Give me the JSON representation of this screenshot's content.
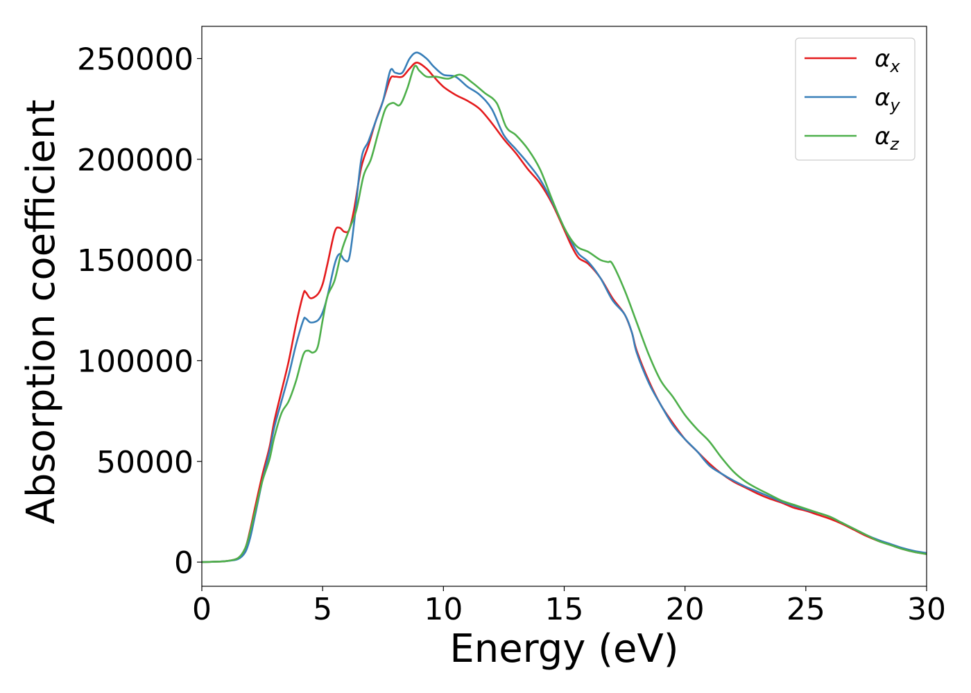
{
  "chart_data": {
    "type": "line",
    "title": "",
    "xlabel": "Energy (eV)",
    "ylabel": "Absorption coefficient",
    "xlim": [
      0,
      30
    ],
    "ylim": [
      -12000,
      266000
    ],
    "xticks": [
      0,
      5,
      10,
      15,
      20,
      25,
      30
    ],
    "yticks": [
      0,
      50000,
      100000,
      150000,
      200000,
      250000
    ],
    "grid": false,
    "legend_position": "top-right",
    "series": [
      {
        "name": "α_x",
        "label_base": "α",
        "label_sub": "x",
        "color": "#e41a1c",
        "x": [
          0,
          0.5,
          1.0,
          1.5,
          1.8,
          2.0,
          2.2,
          2.5,
          2.8,
          3.0,
          3.3,
          3.6,
          3.9,
          4.2,
          4.3,
          4.5,
          4.8,
          5.0,
          5.2,
          5.5,
          5.7,
          5.9,
          6.1,
          6.3,
          6.6,
          6.9,
          7.2,
          7.5,
          7.8,
          8.0,
          8.3,
          8.6,
          8.9,
          9.3,
          9.6,
          10.0,
          10.5,
          11.0,
          11.5,
          12.0,
          12.5,
          13.0,
          13.5,
          14.0,
          14.5,
          15.0,
          15.3,
          15.6,
          16.0,
          16.5,
          17.0,
          17.5,
          17.8,
          18.0,
          18.5,
          19.0,
          19.5,
          20.0,
          20.5,
          21.0,
          21.5,
          22.0,
          22.5,
          23.0,
          23.5,
          24.0,
          24.5,
          25.0,
          25.5,
          26.0,
          26.5,
          27.0,
          27.5,
          28.0,
          28.5,
          29.0,
          29.5,
          30.0
        ],
        "values": [
          0,
          200,
          500,
          2000,
          7000,
          16000,
          27000,
          43000,
          57000,
          70000,
          85000,
          100000,
          118000,
          133000,
          134000,
          131000,
          133000,
          138000,
          148000,
          164000,
          166000,
          164000,
          165000,
          175000,
          196000,
          207000,
          219000,
          229000,
          240000,
          241000,
          241000,
          245000,
          248000,
          245000,
          241000,
          236000,
          232000,
          229000,
          225000,
          218000,
          210000,
          203000,
          195000,
          188000,
          178000,
          165000,
          157000,
          151000,
          148000,
          141000,
          131000,
          123000,
          114000,
          105000,
          90000,
          78000,
          69000,
          61000,
          55000,
          49000,
          44000,
          40000,
          37000,
          34000,
          31500,
          29500,
          27000,
          25500,
          23500,
          21500,
          19000,
          16000,
          13000,
          10500,
          8500,
          6500,
          5000,
          4000
        ]
      },
      {
        "name": "α_y",
        "label_base": "α",
        "label_sub": "y",
        "color": "#377eb8",
        "x": [
          0,
          0.5,
          1.0,
          1.5,
          1.8,
          2.0,
          2.2,
          2.5,
          2.8,
          3.0,
          3.3,
          3.6,
          3.9,
          4.2,
          4.3,
          4.5,
          4.8,
          5.0,
          5.2,
          5.5,
          5.7,
          5.9,
          6.1,
          6.3,
          6.6,
          6.9,
          7.2,
          7.5,
          7.8,
          8.0,
          8.3,
          8.6,
          8.9,
          9.3,
          9.6,
          10.0,
          10.5,
          11.0,
          11.5,
          12.0,
          12.5,
          13.0,
          13.5,
          14.0,
          14.5,
          15.0,
          15.3,
          15.6,
          16.0,
          16.5,
          17.0,
          17.5,
          17.8,
          18.0,
          18.5,
          19.0,
          19.5,
          20.0,
          20.5,
          21.0,
          21.5,
          22.0,
          22.5,
          23.0,
          23.5,
          24.0,
          24.5,
          25.0,
          25.5,
          26.0,
          26.5,
          27.0,
          27.5,
          28.0,
          28.5,
          29.0,
          29.5,
          30.0
        ],
        "values": [
          0,
          200,
          500,
          1500,
          5000,
          12000,
          23000,
          40000,
          55000,
          67000,
          80000,
          93000,
          108000,
          120000,
          121000,
          119000,
          120000,
          124000,
          132000,
          148000,
          153000,
          150000,
          151000,
          168000,
          200000,
          209000,
          219000,
          229000,
          244000,
          243000,
          243000,
          250000,
          253000,
          250000,
          246000,
          242000,
          241000,
          236000,
          232000,
          225000,
          212000,
          205000,
          198000,
          190000,
          179000,
          166000,
          159000,
          153000,
          149000,
          141000,
          130000,
          123000,
          114000,
          104000,
          89000,
          78000,
          68000,
          61000,
          55000,
          48000,
          44000,
          40500,
          37500,
          35000,
          32500,
          30000,
          28000,
          26000,
          24500,
          22500,
          19500,
          16500,
          13500,
          11000,
          9000,
          7000,
          5500,
          4500
        ]
      },
      {
        "name": "α_z",
        "label_base": "α",
        "label_sub": "z",
        "color": "#4daf4a",
        "x": [
          0,
          0.5,
          1.0,
          1.5,
          1.8,
          2.0,
          2.2,
          2.5,
          2.8,
          3.0,
          3.3,
          3.6,
          3.9,
          4.2,
          4.4,
          4.6,
          4.8,
          5.0,
          5.2,
          5.5,
          5.8,
          6.1,
          6.4,
          6.7,
          7.0,
          7.3,
          7.6,
          7.9,
          8.2,
          8.5,
          8.8,
          9.0,
          9.3,
          9.7,
          10.2,
          10.7,
          11.2,
          11.7,
          12.2,
          12.6,
          13.0,
          13.5,
          14.0,
          14.5,
          15.0,
          15.5,
          16.0,
          16.5,
          16.8,
          17.0,
          17.5,
          18.0,
          18.5,
          19.0,
          19.5,
          20.0,
          20.5,
          21.0,
          21.5,
          22.0,
          22.5,
          23.0,
          23.5,
          24.0,
          24.5,
          25.0,
          25.5,
          26.0,
          26.5,
          27.0,
          27.5,
          28.0,
          28.5,
          29.0,
          29.5,
          30.0
        ],
        "values": [
          0,
          200,
          500,
          2000,
          7000,
          15000,
          25000,
          40000,
          51000,
          62000,
          74000,
          80000,
          90000,
          103000,
          105000,
          104000,
          107000,
          120000,
          132000,
          140000,
          155000,
          165000,
          175000,
          192000,
          200000,
          213000,
          225000,
          228000,
          227000,
          235000,
          246000,
          244000,
          241000,
          241000,
          240000,
          242000,
          238000,
          233000,
          228000,
          216000,
          212000,
          205000,
          195000,
          180000,
          166000,
          157000,
          154000,
          150000,
          149000,
          148000,
          135000,
          119000,
          103000,
          90000,
          82000,
          73000,
          66000,
          60000,
          52000,
          45000,
          40000,
          36500,
          33500,
          30500,
          28500,
          26500,
          24500,
          22500,
          19500,
          16500,
          13500,
          10500,
          8500,
          6500,
          5000,
          4000
        ]
      }
    ]
  }
}
